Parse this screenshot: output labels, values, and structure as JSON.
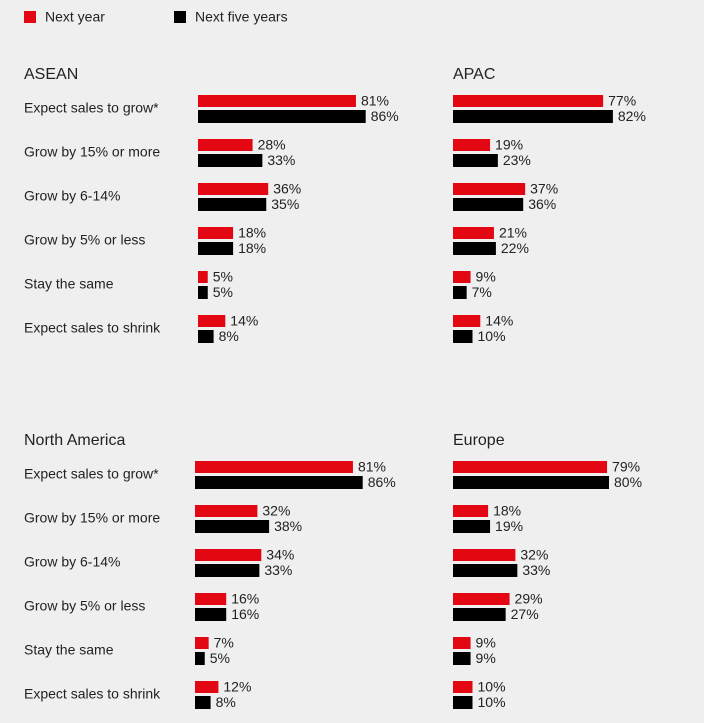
{
  "legend": [
    {
      "name": "Next year",
      "color": "#e30613"
    },
    {
      "name": "Next five years",
      "color": "#000000"
    }
  ],
  "chart_data": [
    {
      "type": "bar",
      "orientation": "horizontal",
      "title": "ASEAN",
      "categories": [
        "Expect sales to grow*",
        "Grow by 15% or more",
        "Grow by 6-14%",
        "Grow by 5% or less",
        "Stay the same",
        "Expect sales to shrink"
      ],
      "series": [
        {
          "values": [
            81,
            28,
            36,
            18,
            5,
            14
          ],
          "value_labels": [
            "81%",
            "28%",
            "36%",
            "18%",
            "5%",
            "14%"
          ]
        },
        {
          "values": [
            86,
            33,
            35,
            18,
            5,
            8
          ],
          "value_labels": [
            "86%",
            "33%",
            "35%",
            "18%",
            "5%",
            "8%"
          ]
        }
      ]
    },
    {
      "type": "bar",
      "orientation": "horizontal",
      "title": "APAC",
      "series": [
        {
          "values": [
            77,
            19,
            37,
            21,
            9,
            14
          ],
          "value_labels": [
            "77%",
            "19%",
            "37%",
            "21%",
            "9%",
            "14%"
          ]
        },
        {
          "values": [
            82,
            23,
            36,
            22,
            7,
            10
          ],
          "value_labels": [
            "82%",
            "23%",
            "36%",
            "22%",
            "7%",
            "10%"
          ]
        }
      ]
    },
    {
      "type": "bar",
      "orientation": "horizontal",
      "title": "North America",
      "categories": [
        "Expect sales to grow*",
        "Grow by 15% or more",
        "Grow by 6-14%",
        "Grow by 5% or less",
        "Stay the same",
        "Expect sales to shrink"
      ],
      "series": [
        {
          "values": [
            81,
            32,
            34,
            16,
            7,
            12
          ],
          "value_labels": [
            "81%",
            "32%",
            "34%",
            "16%",
            "7%",
            "12%"
          ]
        },
        {
          "values": [
            86,
            38,
            33,
            16,
            5,
            8
          ],
          "value_labels": [
            "86%",
            "38%",
            "33%",
            "16%",
            "5%",
            "8%"
          ]
        }
      ]
    },
    {
      "type": "bar",
      "orientation": "horizontal",
      "title": "Europe",
      "series": [
        {
          "values": [
            79,
            18,
            32,
            29,
            9,
            10
          ],
          "value_labels": [
            "79%",
            "18%",
            "32%",
            "29%",
            "9%",
            "10%"
          ]
        },
        {
          "values": [
            80,
            19,
            33,
            27,
            9,
            10
          ],
          "value_labels": [
            "80%",
            "19%",
            "33%",
            "27%",
            "9%",
            "10%"
          ]
        }
      ]
    }
  ]
}
